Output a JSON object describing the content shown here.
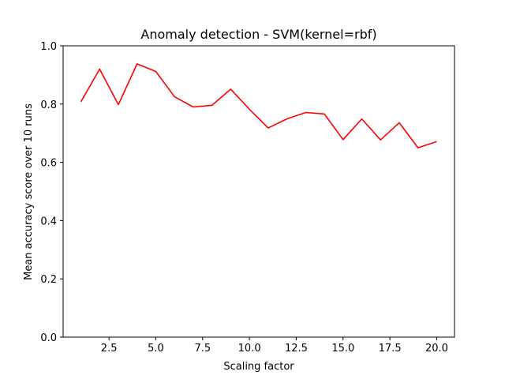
{
  "chart_data": {
    "type": "line",
    "title": "Anomaly detection - SVM(kernel=rbf)",
    "xlabel": "Scaling factor",
    "ylabel": "Mean accuracy score over 10 runs",
    "xlim": [
      0.05,
      20.95
    ],
    "ylim": [
      0,
      1
    ],
    "xticks": [
      2.5,
      5.0,
      7.5,
      10.0,
      12.5,
      15.0,
      17.5,
      20.0
    ],
    "xtick_labels": [
      "2.5",
      "5.0",
      "7.5",
      "10.0",
      "12.5",
      "15.0",
      "17.5",
      "20.0"
    ],
    "yticks": [
      0.0,
      0.2,
      0.4,
      0.6,
      0.8,
      1.0
    ],
    "ytick_labels": [
      "0.0",
      "0.2",
      "0.4",
      "0.6",
      "0.8",
      "1.0"
    ],
    "grid": false,
    "series": [
      {
        "color": "#ff0000",
        "x": [
          1,
          2,
          3,
          4,
          5,
          6,
          7,
          8,
          9,
          10,
          11,
          12,
          13,
          14,
          15,
          16,
          17,
          18,
          19,
          20
        ],
        "y": [
          0.808,
          0.92,
          0.798,
          0.938,
          0.912,
          0.825,
          0.79,
          0.796,
          0.851,
          0.782,
          0.718,
          0.749,
          0.771,
          0.766,
          0.678,
          0.749,
          0.677,
          0.736,
          0.65,
          0.671
        ]
      }
    ]
  }
}
